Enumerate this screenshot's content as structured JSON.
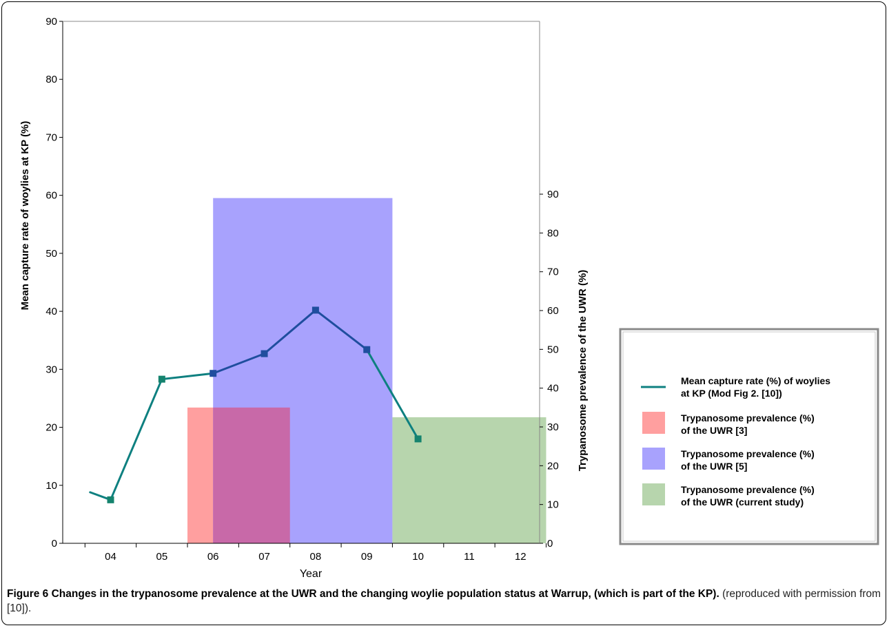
{
  "caption": {
    "label": "Figure 6",
    "title": "Changes in the trypanosome prevalence at the UWR and the changing woylie population status at Warrup, (which is part of the KP).",
    "note": "(reproduced with permission from [10])."
  },
  "chart_data": {
    "type": "bar+line",
    "xlabel": "Year",
    "x_categories": [
      "04",
      "05",
      "06",
      "07",
      "08",
      "09",
      "10",
      "11",
      "12"
    ],
    "y_left": {
      "label": "Mean capture rate of woylies at KP (%)",
      "min": 0,
      "max": 90,
      "ticks": [
        0,
        10,
        20,
        30,
        40,
        50,
        60,
        70,
        80,
        90
      ]
    },
    "y_right": {
      "label": "Trypanosome prevalence of the UWR (%)",
      "min": 0,
      "max": 90,
      "ticks": [
        0,
        10,
        20,
        30,
        40,
        50,
        60,
        70,
        80,
        90
      ]
    },
    "series": [
      {
        "name": "Mean capture rate (%) of woylies at KP (Mod Fig 2. [10])",
        "kind": "line",
        "axis": "left",
        "points": [
          {
            "x": 3.6,
            "y": 8.8,
            "marker": false
          },
          {
            "x": 4.0,
            "y": 7.5,
            "marker": true
          },
          {
            "x": 5.0,
            "y": 28.3,
            "marker": true
          },
          {
            "x": 6.0,
            "y": 29.3,
            "marker": true
          },
          {
            "x": 7.0,
            "y": 32.7,
            "marker": true
          },
          {
            "x": 8.0,
            "y": 40.2,
            "marker": true
          },
          {
            "x": 9.0,
            "y": 33.4,
            "marker": true
          },
          {
            "x": 10.0,
            "y": 18.0,
            "marker": true
          }
        ]
      },
      {
        "name": "Trypanosome prevalence (%) of the UWR [3]",
        "kind": "bar",
        "axis": "right",
        "x_start": 5.5,
        "x_end": 7.5,
        "value": 35
      },
      {
        "name": "Trypanosome prevalence (%) of the UWR [5]",
        "kind": "bar",
        "axis": "right",
        "x_start": 6.0,
        "x_end": 9.5,
        "value": 89
      },
      {
        "name": "Trypanosome prevalence (%) of the UWR (current study)",
        "kind": "bar",
        "axis": "right",
        "x_start": 9.5,
        "x_end": 12.5,
        "value": 32.5
      }
    ],
    "legend": {
      "placement": "right",
      "entries": [
        {
          "line1": "Mean capture rate (%) of woylies",
          "line2": "at KP (Mod Fig 2. [10])"
        },
        {
          "line1": "Trypanosome prevalence (%)",
          "line2": "of the UWR [3]"
        },
        {
          "line1": "Trypanosome prevalence (%)",
          "line2": "of the UWR [5]"
        },
        {
          "line1": "Trypanosome prevalence (%)",
          "line2": "of the UWR (current study)"
        }
      ]
    },
    "colors": {
      "line_teal": "#0e8080",
      "line_blue": "#1f4e9e",
      "marker_blue": "#1f4e9e",
      "marker_teal": "#15836e",
      "bar_ref3": "#ff9f9f",
      "bar_ref5": "#a8a2fd",
      "bar_overlap": "#c869a8",
      "bar_current": "#b7d5ad"
    }
  }
}
